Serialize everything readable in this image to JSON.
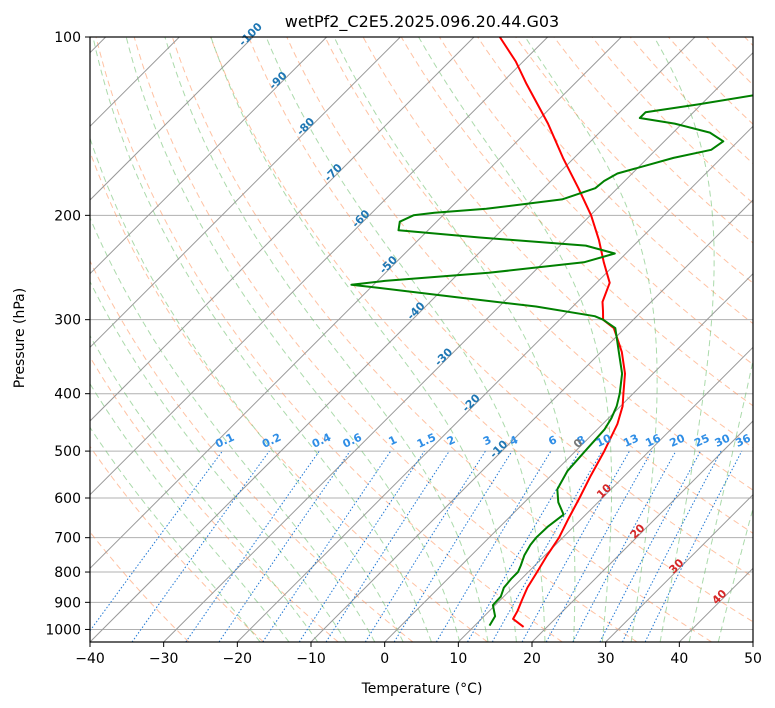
{
  "chart_data": {
    "type": "line",
    "subtype": "skew-T log-P diagram",
    "title": "wetPf2_C2E5.2025.096.20.44.G03",
    "xlabel": "Temperature (°C)",
    "ylabel": "Pressure (hPa)",
    "xlim": [
      -40,
      50
    ],
    "ylim": [
      1050,
      100
    ],
    "y_scale": "log",
    "x_ticks": [
      -40,
      -30,
      -20,
      -10,
      0,
      10,
      20,
      30,
      40,
      50
    ],
    "y_ticks": [
      100,
      200,
      300,
      400,
      500,
      600,
      700,
      800,
      900,
      1000
    ],
    "grid": true,
    "colors": {
      "temperature": "#ff0000",
      "dewpoint": "#008000",
      "isotherm": "#999999",
      "dry_adiabat": "#ff9966",
      "moist_adiabat": "#66bb66",
      "mixing_ratio": "#1f77d4",
      "isotherm_label_neg": "#1f77b4",
      "isotherm_label_pos": "#d62728"
    },
    "series": [
      {
        "id": "temperature",
        "points": [
          {
            "p": 990,
            "t": 16.8
          },
          {
            "p": 960,
            "t": 14.3
          },
          {
            "p": 930,
            "t": 13.8
          },
          {
            "p": 890,
            "t": 12.9
          },
          {
            "p": 850,
            "t": 12.0
          },
          {
            "p": 800,
            "t": 11.2
          },
          {
            "p": 750,
            "t": 10.3
          },
          {
            "p": 700,
            "t": 9.5
          },
          {
            "p": 650,
            "t": 8.2
          },
          {
            "p": 600,
            "t": 6.9
          },
          {
            "p": 550,
            "t": 5.4
          },
          {
            "p": 500,
            "t": 3.9
          },
          {
            "p": 450,
            "t": 2.0
          },
          {
            "p": 420,
            "t": 0.3
          },
          {
            "p": 400,
            "t": -1.3
          },
          {
            "p": 370,
            "t": -3.8
          },
          {
            "p": 340,
            "t": -7.2
          },
          {
            "p": 310,
            "t": -11.5
          },
          {
            "p": 300,
            "t": -14.1
          },
          {
            "p": 290,
            "t": -15.3
          },
          {
            "p": 280,
            "t": -16.6
          },
          {
            "p": 260,
            "t": -18.2
          },
          {
            "p": 240,
            "t": -21.8
          },
          {
            "p": 220,
            "t": -25.5
          },
          {
            "p": 200,
            "t": -29.9
          },
          {
            "p": 180,
            "t": -35.3
          },
          {
            "p": 160,
            "t": -41.5
          },
          {
            "p": 140,
            "t": -48.2
          },
          {
            "p": 120,
            "t": -56.5
          },
          {
            "p": 110,
            "t": -61.0
          },
          {
            "p": 100,
            "t": -66.5
          }
        ]
      },
      {
        "id": "dewpoint",
        "points": [
          {
            "p": 985,
            "t": 12.0
          },
          {
            "p": 950,
            "t": 11.5
          },
          {
            "p": 910,
            "t": 9.7
          },
          {
            "p": 880,
            "t": 9.6
          },
          {
            "p": 850,
            "t": 8.8
          },
          {
            "p": 820,
            "t": 8.6
          },
          {
            "p": 800,
            "t": 8.6
          },
          {
            "p": 780,
            "t": 8.1
          },
          {
            "p": 750,
            "t": 7.2
          },
          {
            "p": 720,
            "t": 6.6
          },
          {
            "p": 700,
            "t": 6.4
          },
          {
            "p": 670,
            "t": 6.5
          },
          {
            "p": 640,
            "t": 7.0
          },
          {
            "p": 610,
            "t": 4.6
          },
          {
            "p": 580,
            "t": 2.7
          },
          {
            "p": 540,
            "t": 1.6
          },
          {
            "p": 500,
            "t": 1.3
          },
          {
            "p": 460,
            "t": 1.0
          },
          {
            "p": 440,
            "t": 0.4
          },
          {
            "p": 420,
            "t": -0.5
          },
          {
            "p": 400,
            "t": -1.8
          },
          {
            "p": 370,
            "t": -4.2
          },
          {
            "p": 340,
            "t": -7.6
          },
          {
            "p": 310,
            "t": -11.3
          },
          {
            "p": 300,
            "t": -14.1
          },
          {
            "p": 296,
            "t": -15.7
          },
          {
            "p": 285,
            "t": -25.0
          },
          {
            "p": 275,
            "t": -37.0
          },
          {
            "p": 265,
            "t": -49.0
          },
          {
            "p": 262,
            "t": -53.0
          },
          {
            "p": 258,
            "t": -49.0
          },
          {
            "p": 250,
            "t": -36.0
          },
          {
            "p": 240,
            "t": -24.5
          },
          {
            "p": 232,
            "t": -21.5
          },
          {
            "p": 225,
            "t": -26.5
          },
          {
            "p": 218,
            "t": -42.0
          },
          {
            "p": 212,
            "t": -54.0
          },
          {
            "p": 205,
            "t": -55.0
          },
          {
            "p": 200,
            "t": -54.0
          },
          {
            "p": 198,
            "t": -51.5
          },
          {
            "p": 195,
            "t": -45.0
          },
          {
            "p": 188,
            "t": -36.0
          },
          {
            "p": 180,
            "t": -33.0
          },
          {
            "p": 175,
            "t": -32.8
          },
          {
            "p": 170,
            "t": -32.0
          },
          {
            "p": 160,
            "t": -26.5
          },
          {
            "p": 155,
            "t": -22.5
          },
          {
            "p": 150,
            "t": -22.0
          },
          {
            "p": 145,
            "t": -25.0
          },
          {
            "p": 140,
            "t": -31.0
          },
          {
            "p": 137,
            "t": -36.5
          },
          {
            "p": 134,
            "t": -36.5
          },
          {
            "p": 130,
            "t": -30.5
          },
          {
            "p": 125,
            "t": -23.5
          },
          {
            "p": 120,
            "t": -21.0
          },
          {
            "p": 115,
            "t": -21.0
          },
          {
            "p": 110,
            "t": -22.0
          },
          {
            "p": 100,
            "t": -25.5
          }
        ]
      }
    ],
    "isotherm_labels": [
      "-100",
      "-90",
      "-80",
      "-70",
      "-60",
      "-50",
      "-40",
      "-30",
      "-20",
      "-10",
      "0",
      "10",
      "20",
      "30",
      "40"
    ],
    "mixing_ratio_labels": [
      "0.1",
      "0.2",
      "0.4",
      "0.6",
      "1",
      "1.5",
      "2",
      "3",
      "4",
      "6",
      "8",
      "10",
      "13",
      "16",
      "20",
      "25",
      "30",
      "36"
    ]
  }
}
